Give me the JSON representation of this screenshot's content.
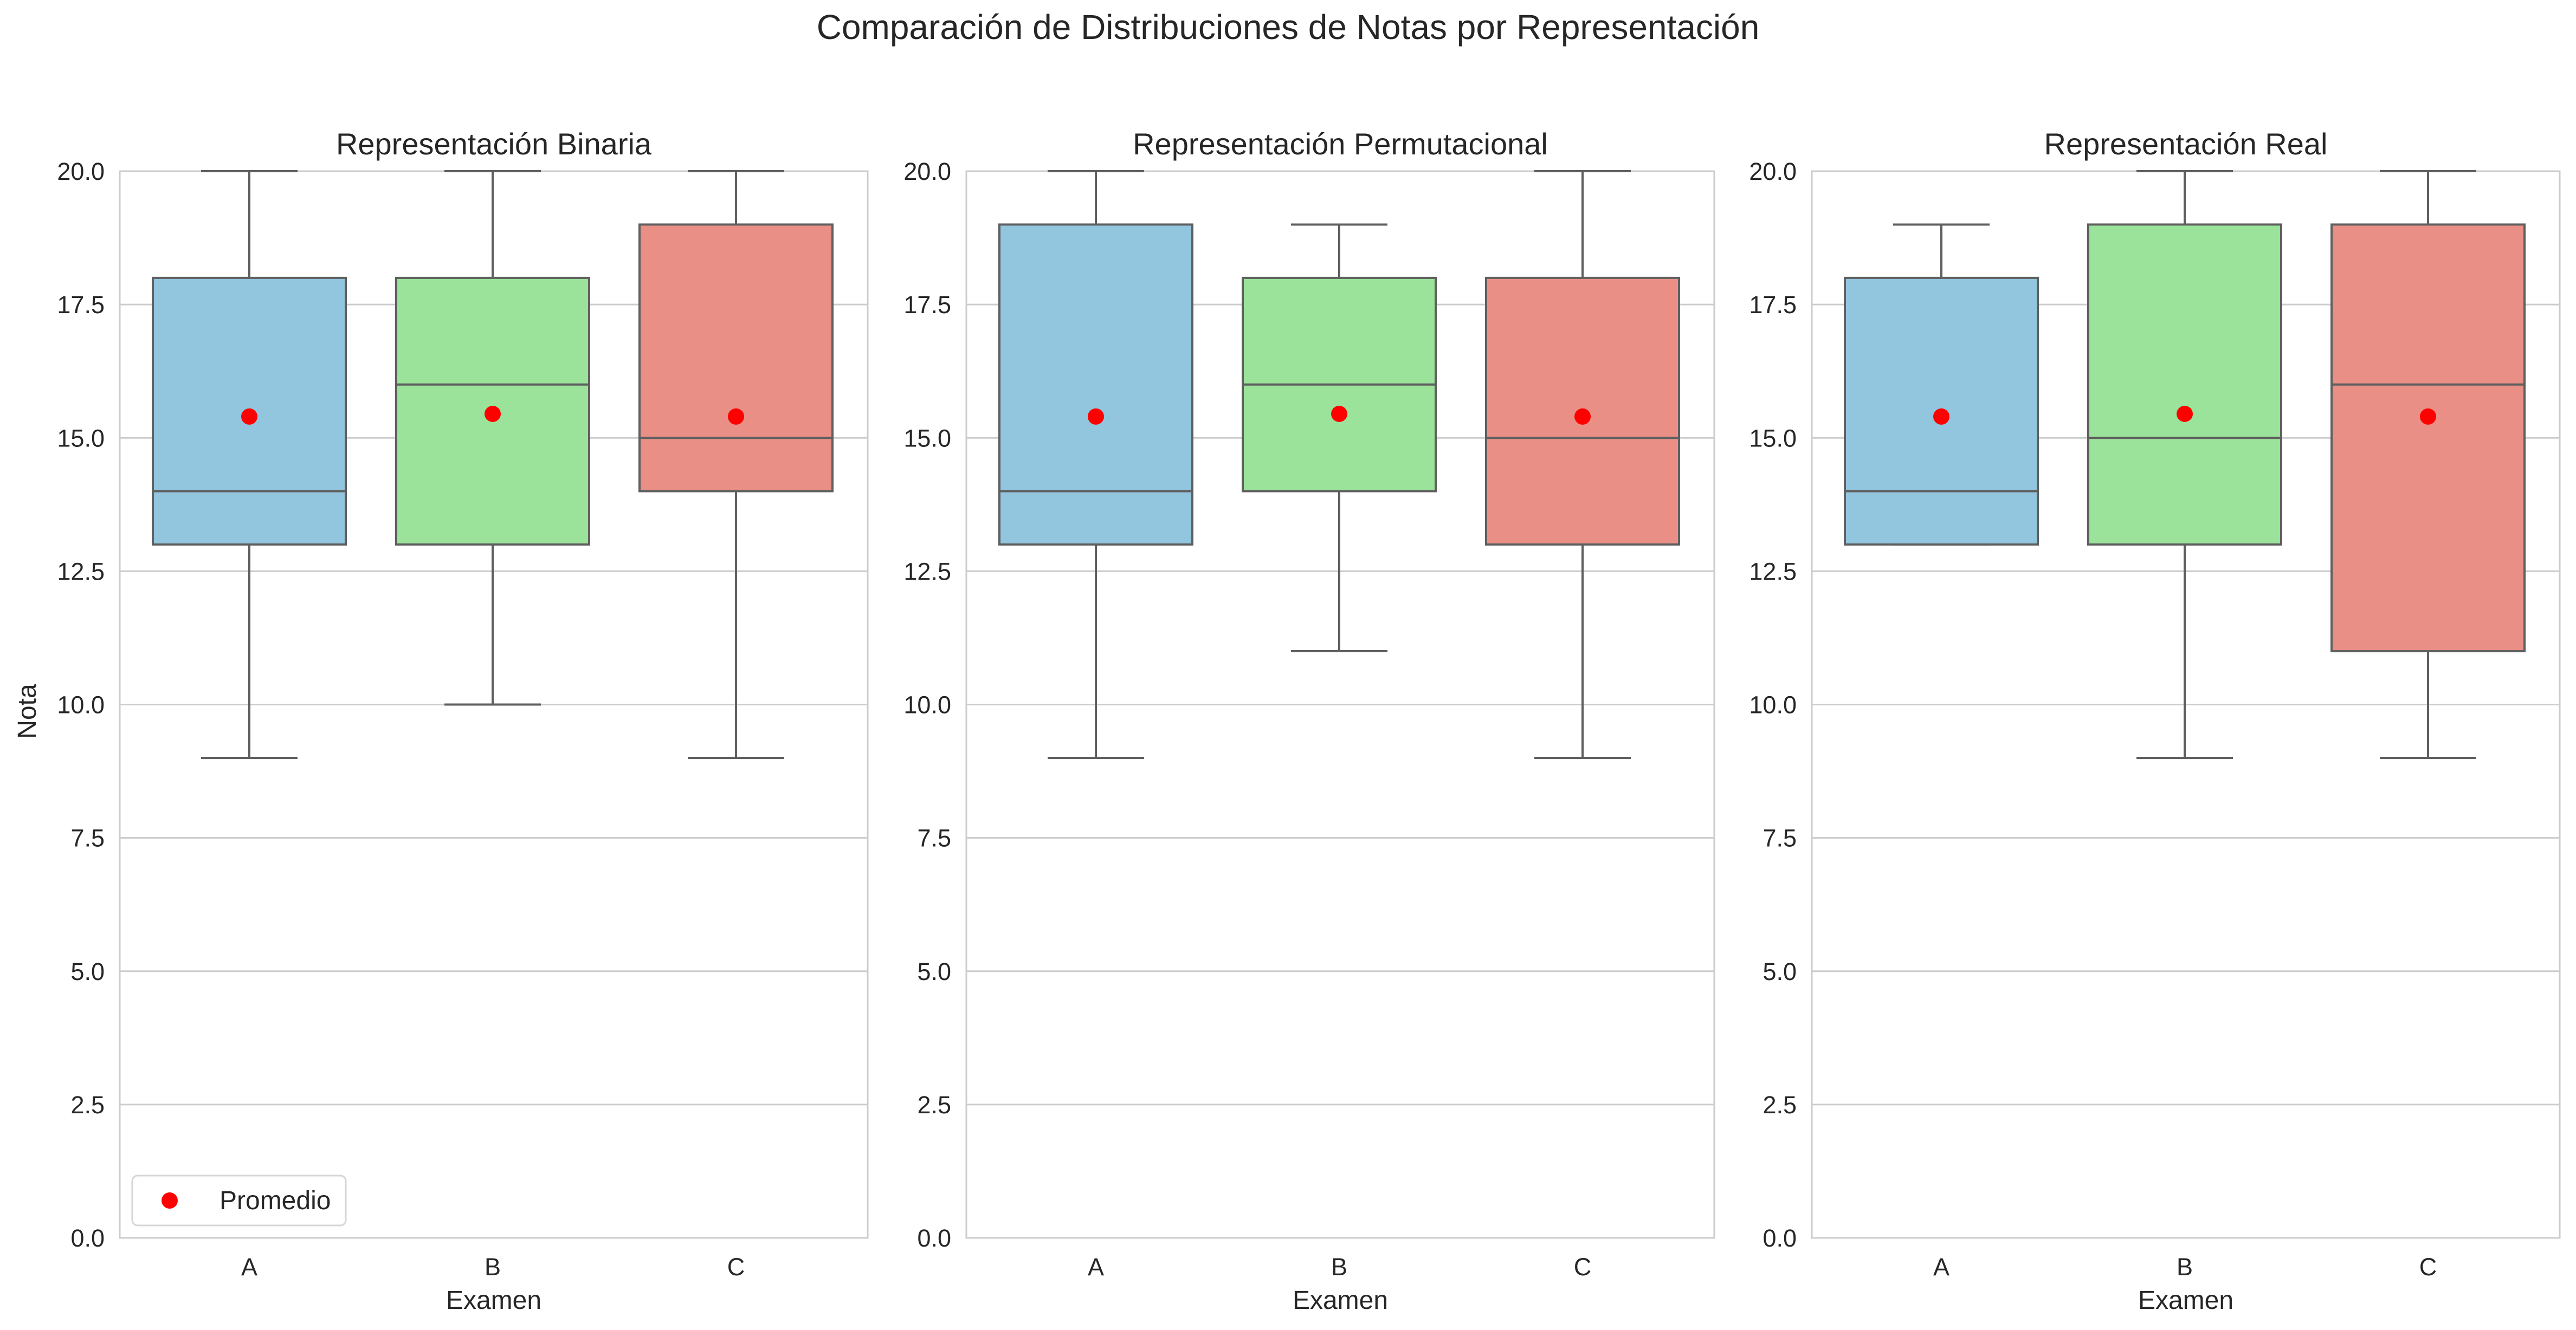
{
  "chart_data": {
    "type": "box",
    "title": "Comparación de Distribuciones de Notas por Representación",
    "xlabel": "Examen",
    "ylabel": "Nota",
    "ylim": [
      0,
      20
    ],
    "yticks": [
      "0.0",
      "2.5",
      "5.0",
      "7.5",
      "10.0",
      "12.5",
      "15.0",
      "17.5",
      "20.0"
    ],
    "categories": [
      "A",
      "B",
      "C"
    ],
    "colors": {
      "A": "#92c5de",
      "B": "#9be39a",
      "C": "#e98f86",
      "mean": "#ff0000"
    },
    "legend": {
      "label": "Promedio",
      "position": "lower-left",
      "panel_index": 0
    },
    "panels": [
      {
        "title": "Representación Binaria",
        "boxes": [
          {
            "category": "A",
            "whisker_low": 9,
            "q1": 13,
            "median": 14,
            "q3": 18,
            "whisker_high": 20,
            "mean": 15.4
          },
          {
            "category": "B",
            "whisker_low": 10,
            "q1": 13,
            "median": 16,
            "q3": 18,
            "whisker_high": 20,
            "mean": 15.45
          },
          {
            "category": "C",
            "whisker_low": 9,
            "q1": 14,
            "median": 15,
            "q3": 19,
            "whisker_high": 20,
            "mean": 15.4
          }
        ]
      },
      {
        "title": "Representación Permutacional",
        "boxes": [
          {
            "category": "A",
            "whisker_low": 9,
            "q1": 13,
            "median": 14,
            "q3": 19,
            "whisker_high": 20,
            "mean": 15.4
          },
          {
            "category": "B",
            "whisker_low": 11,
            "q1": 14,
            "median": 16,
            "q3": 18,
            "whisker_high": 19,
            "mean": 15.45
          },
          {
            "category": "C",
            "whisker_low": 9,
            "q1": 13,
            "median": 15,
            "q3": 18,
            "whisker_high": 20,
            "mean": 15.4
          }
        ]
      },
      {
        "title": "Representación Real",
        "boxes": [
          {
            "category": "A",
            "whisker_low": 13,
            "q1": 13,
            "median": 14,
            "q3": 18,
            "whisker_high": 19,
            "mean": 15.4
          },
          {
            "category": "B",
            "whisker_low": 9,
            "q1": 13,
            "median": 15,
            "q3": 19,
            "whisker_high": 20,
            "mean": 15.45
          },
          {
            "category": "C",
            "whisker_low": 9,
            "q1": 11,
            "median": 16,
            "q3": 19,
            "whisker_high": 20,
            "mean": 15.4
          }
        ]
      }
    ]
  }
}
